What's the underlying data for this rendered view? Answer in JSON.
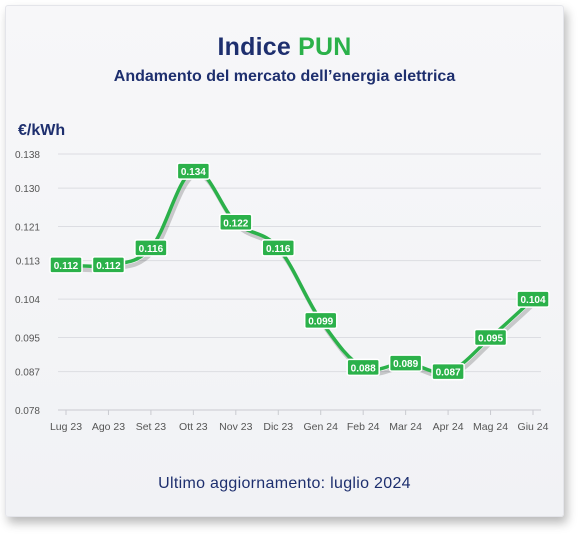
{
  "header": {
    "title_main": "Indice",
    "title_accent": "PUN",
    "subtitle": "Andamento del mercato dell’energia elettrica"
  },
  "unit_label": "€/kWh",
  "footer": "Ultimo aggiornamento: luglio 2024",
  "colors": {
    "line": "#2bb14a",
    "label_bg": "#2bb14a",
    "label_text": "#ffffff",
    "title": "#1e2f6e",
    "grid": "#dcdde2",
    "tick": "#555555"
  },
  "chart_data": {
    "type": "line",
    "title": "Indice PUN",
    "subtitle": "Andamento del mercato dell’energia elettrica",
    "ylabel": "€/kWh",
    "xlabel": "",
    "categories": [
      "Lug 23",
      "Ago 23",
      "Set 23",
      "Ott 23",
      "Nov 23",
      "Dic 23",
      "Gen 24",
      "Feb 24",
      "Mar 24",
      "Apr 24",
      "Mag 24",
      "Giu 24"
    ],
    "series": [
      {
        "values": [
          0.112,
          0.112,
          0.116,
          0.134,
          0.122,
          0.116,
          0.099,
          0.088,
          0.089,
          0.087,
          0.095,
          0.104
        ]
      }
    ],
    "y_ticks": [
      0.078,
      0.087,
      0.095,
      0.104,
      0.113,
      0.121,
      0.13,
      0.138
    ],
    "y_tick_labels": [
      "0.078",
      "0.087",
      "0.095",
      "0.104",
      "0.113",
      "0.121",
      "0.130",
      "0.138"
    ],
    "data_labels": [
      "0.112",
      "0.112",
      "0.116",
      "0.134",
      "0.122",
      "0.116",
      "0.099",
      "0.088",
      "0.089",
      "0.087",
      "0.095",
      "0.104"
    ],
    "ylim": [
      0.078,
      0.138
    ],
    "grid": true,
    "legend": "none"
  }
}
